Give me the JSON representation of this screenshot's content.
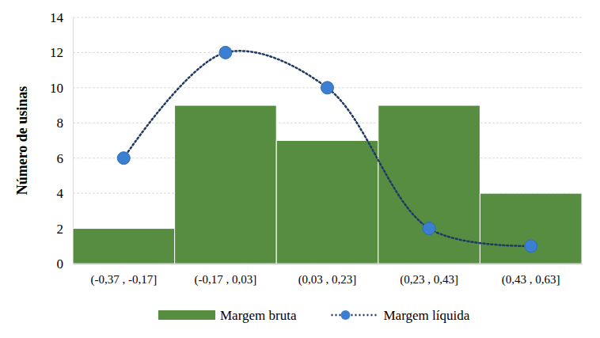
{
  "chart_data": {
    "type": "bar",
    "y_label": "Número de usinas",
    "categories": [
      "(-0,37 , -0,17]",
      "(-0,17 , 0,03]",
      "(0,03 , 0,23]",
      "(0,23 , 0,43]",
      "(0,43 , 0,63]"
    ],
    "series": [
      {
        "name": "Margem bruta",
        "type": "bar",
        "color": "#568d40",
        "values": [
          2,
          9,
          7,
          9,
          4
        ]
      },
      {
        "name": "Margem líquida",
        "type": "line",
        "color": "#1f3864",
        "marker": "circle",
        "line_style": "dotted",
        "values": [
          6,
          12,
          10,
          2,
          1
        ]
      }
    ],
    "ylim": [
      0,
      14
    ],
    "yticks": [
      0,
      2,
      4,
      6,
      8,
      10,
      12,
      14
    ],
    "grid": true,
    "legend": "bottom"
  }
}
